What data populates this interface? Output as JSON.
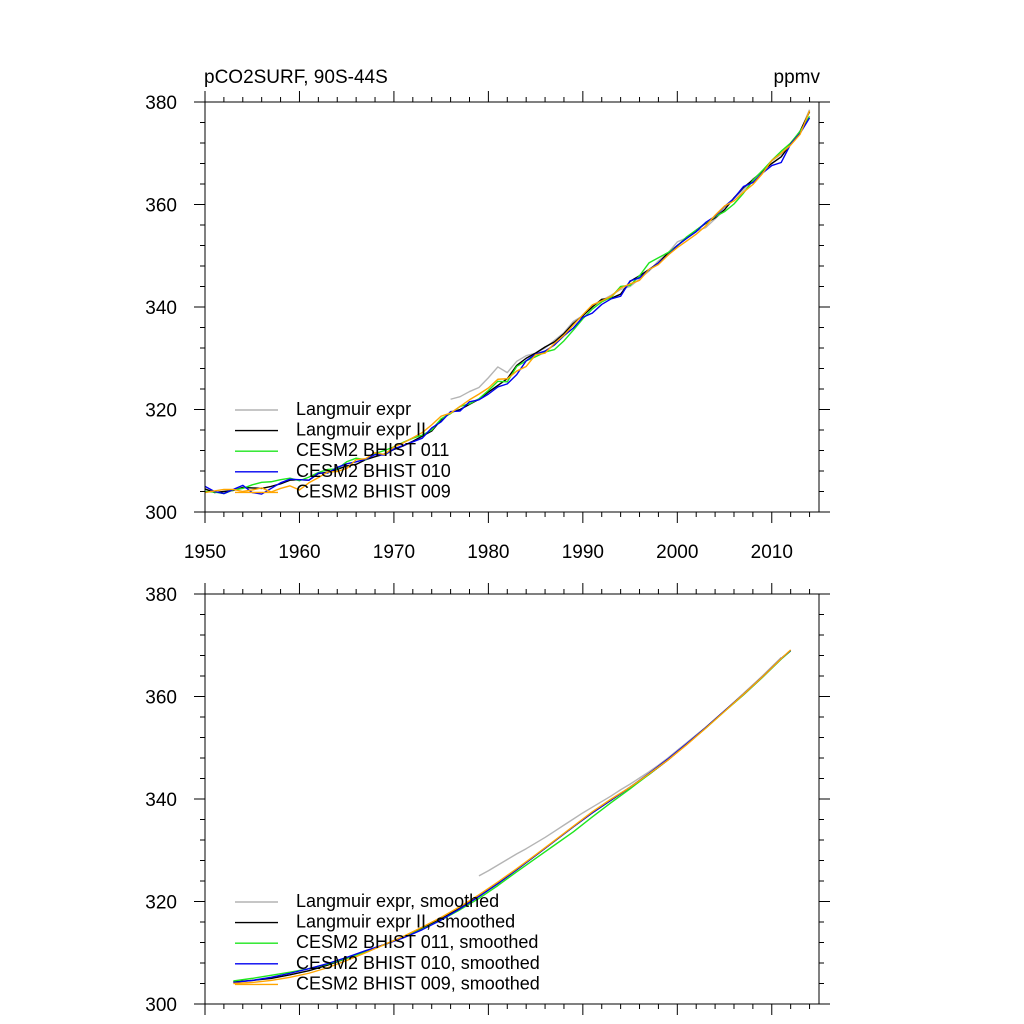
{
  "chart_data": [
    {
      "type": "line",
      "title": "pCO2SURF, 90S-44S",
      "units": "ppmv",
      "xlim": [
        1950,
        2015
      ],
      "ylim": [
        300,
        380
      ],
      "xticks": [
        1950,
        1960,
        1970,
        1980,
        1990,
        2000,
        2010
      ],
      "yticks": [
        300,
        320,
        340,
        360,
        380
      ],
      "xtick_labels": [
        "1950",
        "1960",
        "1970",
        "1980",
        "1990",
        "2000",
        "2010"
      ],
      "ytick_labels": [
        "300",
        "320",
        "340",
        "360",
        "380"
      ],
      "legend_position": "bottom-left",
      "series": [
        {
          "name": "Langmuir expr",
          "color": "#b4b4b4",
          "x": [
            1976,
            1977,
            1978,
            1979,
            1980,
            1981,
            1982,
            1983,
            1984,
            1985,
            1986,
            1987,
            1988,
            1989,
            1990,
            1991,
            1992,
            1993,
            1994,
            1995,
            1996,
            1997,
            1998,
            1999,
            2000,
            2001,
            2002,
            2003,
            2004,
            2005,
            2006,
            2007,
            2008,
            2009,
            2010,
            2011,
            2012,
            2013,
            2014
          ],
          "y": [
            322.0,
            322.5,
            323.5,
            324.3,
            326.2,
            328.3,
            327.2,
            329.4,
            330.5,
            331.0,
            332.0,
            333.5,
            335.0,
            337.2,
            338.3,
            340.2,
            341.3,
            342.3,
            343.4,
            344.0,
            345.5,
            347.0,
            349.0,
            350.5,
            352.7,
            353.5,
            354.8,
            355.5,
            357.2,
            359.0,
            361.2,
            362.8,
            365.0,
            366.2,
            368.5,
            369.8,
            372.0,
            374.2,
            378.5
          ]
        },
        {
          "name": "Langmuir expr II",
          "color": "#000000",
          "x": [
            1950,
            1951,
            1952,
            1953,
            1954,
            1955,
            1956,
            1957,
            1958,
            1959,
            1960,
            1961,
            1962,
            1963,
            1964,
            1965,
            1966,
            1967,
            1968,
            1969,
            1970,
            1971,
            1972,
            1973,
            1974,
            1975,
            1976,
            1977,
            1978,
            1979,
            1980,
            1981,
            1982,
            1983,
            1984,
            1985,
            1986,
            1987,
            1988,
            1989,
            1990,
            1991,
            1992,
            1993,
            1994,
            1995,
            1996,
            1997,
            1998,
            1999,
            2000,
            2001,
            2002,
            2003,
            2004,
            2005,
            2006,
            2007,
            2008,
            2009,
            2010,
            2011,
            2012,
            2013,
            2014
          ],
          "y": [
            304.5,
            303.8,
            304.0,
            304.2,
            304.8,
            304.7,
            304.6,
            305.0,
            305.5,
            306.2,
            306.3,
            306.2,
            307.5,
            307.8,
            308.3,
            309.0,
            309.3,
            310.2,
            310.8,
            311.3,
            312.2,
            312.9,
            313.8,
            314.8,
            315.8,
            318.0,
            319.4,
            320.0,
            321.0,
            322.0,
            323.4,
            324.7,
            326.0,
            328.6,
            330.0,
            331.0,
            332.2,
            333.2,
            334.8,
            336.8,
            338.3,
            340.0,
            341.5,
            341.7,
            342.5,
            345.0,
            346.1,
            347.3,
            348.6,
            350.5,
            352.0,
            353.5,
            355.0,
            356.3,
            357.4,
            359.0,
            361.3,
            363.3,
            364.8,
            366.5,
            368.0,
            369.3,
            371.8,
            374.3,
            378.1
          ]
        },
        {
          "name": "CESM2 BHIST 011",
          "color": "#1ee61e",
          "x": [
            1950,
            1951,
            1952,
            1953,
            1954,
            1955,
            1956,
            1957,
            1958,
            1959,
            1960,
            1961,
            1962,
            1963,
            1964,
            1965,
            1966,
            1967,
            1968,
            1969,
            1970,
            1971,
            1972,
            1973,
            1974,
            1975,
            1976,
            1977,
            1978,
            1979,
            1980,
            1981,
            1982,
            1983,
            1984,
            1985,
            1986,
            1987,
            1988,
            1989,
            1990,
            1991,
            1992,
            1993,
            1994,
            1995,
            1996,
            1997,
            1998,
            1999,
            2000,
            2001,
            2002,
            2003,
            2004,
            2005,
            2006,
            2007,
            2008,
            2009,
            2010,
            2011,
            2012,
            2013,
            2014
          ],
          "y": [
            304.0,
            303.9,
            303.6,
            304.3,
            304.6,
            305.3,
            305.8,
            305.9,
            306.3,
            306.6,
            306.1,
            306.8,
            307.7,
            308.3,
            308.4,
            309.8,
            310.5,
            310.2,
            311.4,
            312.0,
            312.7,
            313.6,
            314.4,
            315.0,
            316.0,
            318.2,
            319.2,
            320.6,
            321.1,
            322.1,
            323.7,
            325.5,
            325.4,
            328.4,
            329.5,
            330.3,
            331.2,
            331.7,
            333.4,
            335.5,
            337.7,
            339.6,
            341.0,
            341.9,
            344.0,
            344.2,
            346.1,
            348.6,
            349.6,
            350.6,
            351.9,
            353.7,
            355.0,
            356.4,
            357.6,
            358.6,
            360.1,
            362.2,
            364.7,
            366.6,
            368.6,
            370.4,
            372.0,
            374.3,
            377.2
          ]
        },
        {
          "name": "CESM2 BHIST 010",
          "color": "#0000f0",
          "x": [
            1950,
            1951,
            1952,
            1953,
            1954,
            1955,
            1956,
            1957,
            1958,
            1959,
            1960,
            1961,
            1962,
            1963,
            1964,
            1965,
            1966,
            1967,
            1968,
            1969,
            1970,
            1971,
            1972,
            1973,
            1974,
            1975,
            1976,
            1977,
            1978,
            1979,
            1980,
            1981,
            1982,
            1983,
            1984,
            1985,
            1986,
            1987,
            1988,
            1989,
            1990,
            1991,
            1992,
            1993,
            1994,
            1995,
            1996,
            1997,
            1998,
            1999,
            2000,
            2001,
            2002,
            2003,
            2004,
            2005,
            2006,
            2007,
            2008,
            2009,
            2010,
            2011,
            2012,
            2013,
            2014
          ],
          "y": [
            305.0,
            304.0,
            303.6,
            304.4,
            305.2,
            303.8,
            303.5,
            304.6,
            305.7,
            306.4,
            306.3,
            306.2,
            307.6,
            307.6,
            308.7,
            309.4,
            309.8,
            310.3,
            311.2,
            311.1,
            312.3,
            313.0,
            313.7,
            314.4,
            316.4,
            317.6,
            319.6,
            319.7,
            321.5,
            321.9,
            323.0,
            324.4,
            325.0,
            326.8,
            329.5,
            330.8,
            331.4,
            332.6,
            334.4,
            335.9,
            338.0,
            338.8,
            340.5,
            341.6,
            342.1,
            345.1,
            345.7,
            347.2,
            348.6,
            350.1,
            352.0,
            353.4,
            354.7,
            356.5,
            357.7,
            359.6,
            361.2,
            363.5,
            364.3,
            366.1,
            367.6,
            368.2,
            371.8,
            373.9,
            376.9
          ]
        },
        {
          "name": "CESM2 BHIST 009",
          "color": "#ffa500",
          "x": [
            1950,
            1951,
            1952,
            1953,
            1954,
            1955,
            1956,
            1957,
            1958,
            1959,
            1960,
            1961,
            1962,
            1963,
            1964,
            1965,
            1966,
            1967,
            1968,
            1969,
            1970,
            1971,
            1972,
            1973,
            1974,
            1975,
            1976,
            1977,
            1978,
            1979,
            1980,
            1981,
            1982,
            1983,
            1984,
            1985,
            1986,
            1987,
            1988,
            1989,
            1990,
            1991,
            1992,
            1993,
            1994,
            1995,
            1996,
            1997,
            1998,
            1999,
            2000,
            2001,
            2002,
            2003,
            2004,
            2005,
            2006,
            2007,
            2008,
            2009,
            2010,
            2011,
            2012,
            2013,
            2014
          ],
          "y": [
            303.8,
            304.1,
            304.4,
            304.4,
            304.0,
            304.3,
            304.7,
            303.9,
            304.6,
            305.1,
            304.3,
            305.7,
            306.7,
            307.8,
            307.9,
            308.5,
            310.2,
            310.4,
            311.6,
            311.2,
            312.7,
            313.5,
            314.5,
            315.5,
            317.0,
            318.7,
            319.3,
            320.6,
            321.9,
            323.0,
            324.2,
            325.9,
            326.0,
            327.5,
            328.4,
            330.7,
            331.0,
            332.9,
            334.5,
            336.5,
            338.5,
            340.4,
            341.2,
            342.1,
            343.7,
            344.5,
            345.2,
            347.3,
            348.3,
            350.1,
            351.6,
            352.9,
            354.2,
            355.8,
            357.9,
            359.7,
            360.7,
            362.4,
            363.9,
            366.0,
            368.6,
            370.0,
            371.6,
            373.7,
            378.3
          ]
        }
      ]
    },
    {
      "type": "line",
      "title": "",
      "units": "",
      "xlim": [
        1950,
        2015
      ],
      "ylim": [
        300,
        380
      ],
      "xticks": [
        1950,
        1960,
        1970,
        1980,
        1990,
        2000,
        2010
      ],
      "yticks": [
        300,
        320,
        340,
        360,
        380
      ],
      "ytick_labels": [
        "300",
        "320",
        "340",
        "360",
        "380"
      ],
      "legend_position": "bottom-left",
      "series": [
        {
          "name": "Langmuir expr, smoothed",
          "color": "#b4b4b4",
          "x": [
            1979,
            1980,
            1981,
            1982,
            1983,
            1984,
            1985,
            1986,
            1987,
            1988,
            1989,
            1990,
            1991,
            1992,
            1993,
            1994,
            1995,
            1996,
            1997,
            1998,
            1999,
            2000,
            2001,
            2002,
            2003,
            2004,
            2005,
            2006,
            2007,
            2008,
            2009,
            2010,
            2011
          ],
          "y": [
            325.0,
            326.0,
            327.1,
            328.2,
            329.3,
            330.3,
            331.4,
            332.5,
            333.7,
            334.9,
            336.1,
            337.3,
            338.4,
            339.5,
            340.6,
            341.8,
            342.9,
            344.1,
            345.3,
            346.6,
            348.0,
            349.5,
            351.0,
            352.5,
            354.0,
            355.6,
            357.2,
            358.9,
            360.6,
            362.3,
            364.0,
            365.8,
            367.6
          ]
        },
        {
          "name": "Langmuir expr II, smoothed",
          "color": "#000000",
          "x": [
            1953,
            1955,
            1957,
            1959,
            1961,
            1963,
            1965,
            1967,
            1969,
            1971,
            1973,
            1975,
            1977,
            1979,
            1981,
            1983,
            1985,
            1987,
            1989,
            1991,
            1993,
            1995,
            1997,
            1999,
            2001,
            2003,
            2005,
            2007,
            2009,
            2011,
            2012
          ],
          "y": [
            304.3,
            304.6,
            305.0,
            305.7,
            306.5,
            307.6,
            308.9,
            310.3,
            311.6,
            313.1,
            314.8,
            316.7,
            318.8,
            321.0,
            323.5,
            326.2,
            329.0,
            331.8,
            334.6,
            337.3,
            339.8,
            342.3,
            344.8,
            347.6,
            350.7,
            353.9,
            357.2,
            360.4,
            363.8,
            367.4,
            369.0
          ]
        },
        {
          "name": "CESM2 BHIST 011, smoothed",
          "color": "#1ee61e",
          "x": [
            1953,
            1955,
            1957,
            1959,
            1961,
            1963,
            1965,
            1967,
            1969,
            1971,
            1973,
            1975,
            1977,
            1979,
            1981,
            1983,
            1985,
            1987,
            1989,
            1991,
            1993,
            1995,
            1997,
            1999,
            2001,
            2003,
            2005,
            2007,
            2009,
            2011,
            2012
          ],
          "y": [
            304.5,
            305.0,
            305.6,
            306.2,
            306.9,
            307.8,
            308.9,
            310.2,
            311.6,
            313.0,
            314.6,
            316.4,
            318.4,
            320.6,
            323.1,
            325.8,
            328.4,
            331.0,
            333.6,
            336.5,
            339.3,
            342.0,
            344.8,
            347.7,
            350.7,
            353.8,
            357.1,
            360.3,
            363.7,
            367.3,
            368.9
          ]
        },
        {
          "name": "CESM2 BHIST 010, smoothed",
          "color": "#0000f0",
          "x": [
            1953,
            1955,
            1957,
            1959,
            1961,
            1963,
            1965,
            1967,
            1969,
            1971,
            1973,
            1975,
            1977,
            1979,
            1981,
            1983,
            1985,
            1987,
            1989,
            1991,
            1993,
            1995,
            1997,
            1999,
            2001,
            2003,
            2005,
            2007,
            2009,
            2011,
            2012
          ],
          "y": [
            304.2,
            304.6,
            305.2,
            306.0,
            306.9,
            307.9,
            309.1,
            310.4,
            311.6,
            312.9,
            314.5,
            316.4,
            318.6,
            321.0,
            323.5,
            326.2,
            329.0,
            331.8,
            334.6,
            337.3,
            339.8,
            342.3,
            345.0,
            347.8,
            350.8,
            353.9,
            357.2,
            360.4,
            363.8,
            367.4,
            369.0
          ]
        },
        {
          "name": "CESM2 BHIST 009, smoothed",
          "color": "#ffa500",
          "x": [
            1953,
            1955,
            1957,
            1959,
            1961,
            1963,
            1965,
            1967,
            1969,
            1971,
            1973,
            1975,
            1977,
            1979,
            1981,
            1983,
            1985,
            1987,
            1989,
            1991,
            1993,
            1995,
            1997,
            1999,
            2001,
            2003,
            2005,
            2007,
            2009,
            2011,
            2012
          ],
          "y": [
            304.0,
            304.2,
            304.6,
            305.2,
            306.0,
            307.1,
            308.5,
            310.0,
            311.6,
            313.2,
            315.0,
            316.9,
            319.0,
            321.3,
            323.8,
            326.4,
            329.1,
            331.9,
            334.7,
            337.5,
            340.0,
            342.3,
            344.9,
            347.6,
            350.6,
            353.8,
            357.1,
            360.4,
            363.8,
            367.4,
            369.1
          ]
        }
      ]
    }
  ]
}
